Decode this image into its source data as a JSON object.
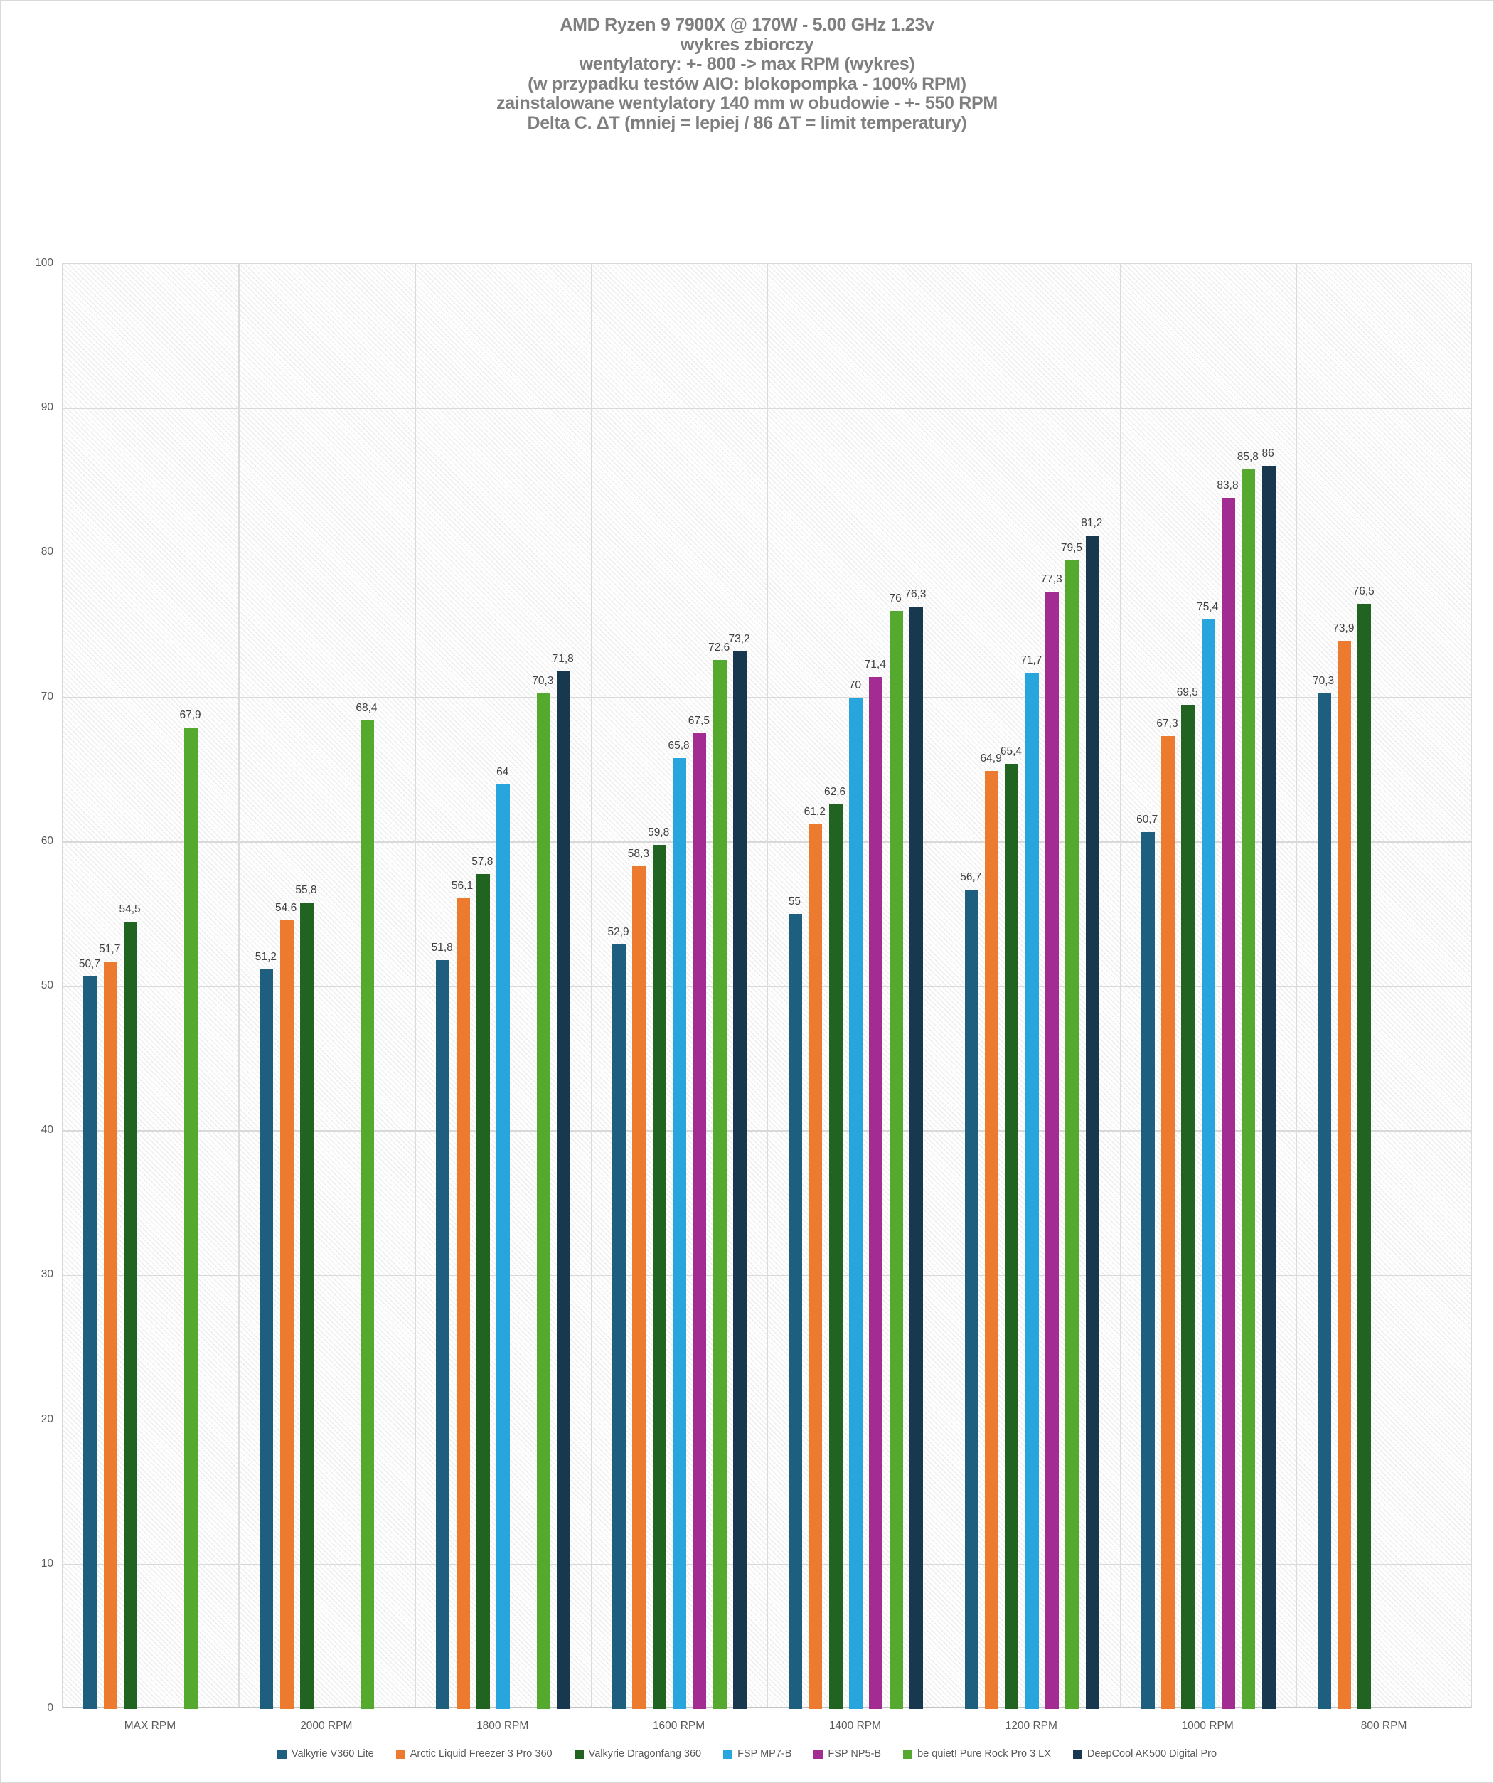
{
  "title": {
    "lines": [
      "AMD Ryzen 9 7900X @ 170W - 5.00 GHz 1.23v",
      "wykres zbiorczy",
      "wentylatory: +- 800 -> max RPM (wykres)",
      "(w przypadku testów AIO: blokopompka - 100% RPM)",
      "zainstalowane wentylatory 140 mm w obudowie - +- 550 RPM",
      "Delta C. ΔT (mniej = lepiej / 86 ΔT = limit temperatury)"
    ]
  },
  "chart_data": {
    "type": "bar",
    "title": "AMD Ryzen 9 7900X @ 170W - 5.00 GHz 1.23v — wykres zbiorczy",
    "subtitle": "Delta C. ΔT (mniej = lepiej / 86 ΔT = limit temperatury)",
    "xlabel": "",
    "ylabel": "",
    "ylim": [
      0,
      100
    ],
    "ytick_step": 10,
    "grid": true,
    "legend_position": "bottom",
    "value_label_decimal_separator": ",",
    "categories": [
      "MAX RPM",
      "2000 RPM",
      "1800 RPM",
      "1600 RPM",
      "1400 RPM",
      "1200 RPM",
      "1000 RPM",
      "800 RPM"
    ],
    "series": [
      {
        "name": "Valkyrie V360 Lite",
        "color": "#1E5E7E",
        "values": [
          50.7,
          51.2,
          51.8,
          52.9,
          55,
          56.7,
          60.7,
          70.3
        ],
        "labels": [
          "50,7",
          "51,2",
          "51,8",
          "52,9",
          "55",
          "56,7",
          "60,7",
          "70,3"
        ]
      },
      {
        "name": "Arctic Liquid Freezer 3 Pro 360",
        "color": "#EC7A2F",
        "values": [
          51.7,
          54.6,
          56.1,
          58.3,
          61.2,
          64.9,
          67.3,
          73.9
        ],
        "labels": [
          "51,7",
          "54,6",
          "56,1",
          "58,3",
          "61,2",
          "64,9",
          "67,3",
          "73,9"
        ]
      },
      {
        "name": "Valkyrie Dragonfang 360",
        "color": "#216421",
        "values": [
          54.5,
          55.8,
          57.8,
          59.8,
          62.6,
          65.4,
          69.5,
          76.5
        ],
        "labels": [
          "54,5",
          "55,8",
          "57,8",
          "59,8",
          "62,6",
          "65,4",
          "69,5",
          "76,5"
        ]
      },
      {
        "name": "FSP MP7-B",
        "color": "#29A5DD",
        "values": [
          null,
          null,
          64,
          65.8,
          70,
          71.7,
          75.4,
          null
        ],
        "labels": [
          null,
          null,
          "64",
          "65,8",
          "70",
          "71,7",
          "75,4",
          null
        ]
      },
      {
        "name": "FSP NP5-B",
        "color": "#A32C93",
        "values": [
          null,
          null,
          null,
          67.5,
          71.4,
          77.3,
          83.8,
          null
        ],
        "labels": [
          null,
          null,
          null,
          "67,5",
          "71,4",
          "77,3",
          "83,8",
          null
        ]
      },
      {
        "name": "be quiet! Pure Rock Pro 3 LX",
        "color": "#56A92F",
        "values": [
          67.9,
          68.4,
          70.3,
          72.6,
          76,
          79.5,
          85.8,
          null
        ],
        "labels": [
          "67,9",
          "68,4",
          "70,3",
          "72,6",
          "76",
          "79,5",
          "85,8",
          null
        ]
      },
      {
        "name": "DeepCool AK500 Digital Pro",
        "color": "#17384E",
        "values": [
          null,
          null,
          71.8,
          73.2,
          76.3,
          81.2,
          86,
          null
        ],
        "labels": [
          null,
          null,
          "71,8",
          "73,2",
          "76,3",
          "81,2",
          "86",
          null
        ]
      }
    ]
  }
}
